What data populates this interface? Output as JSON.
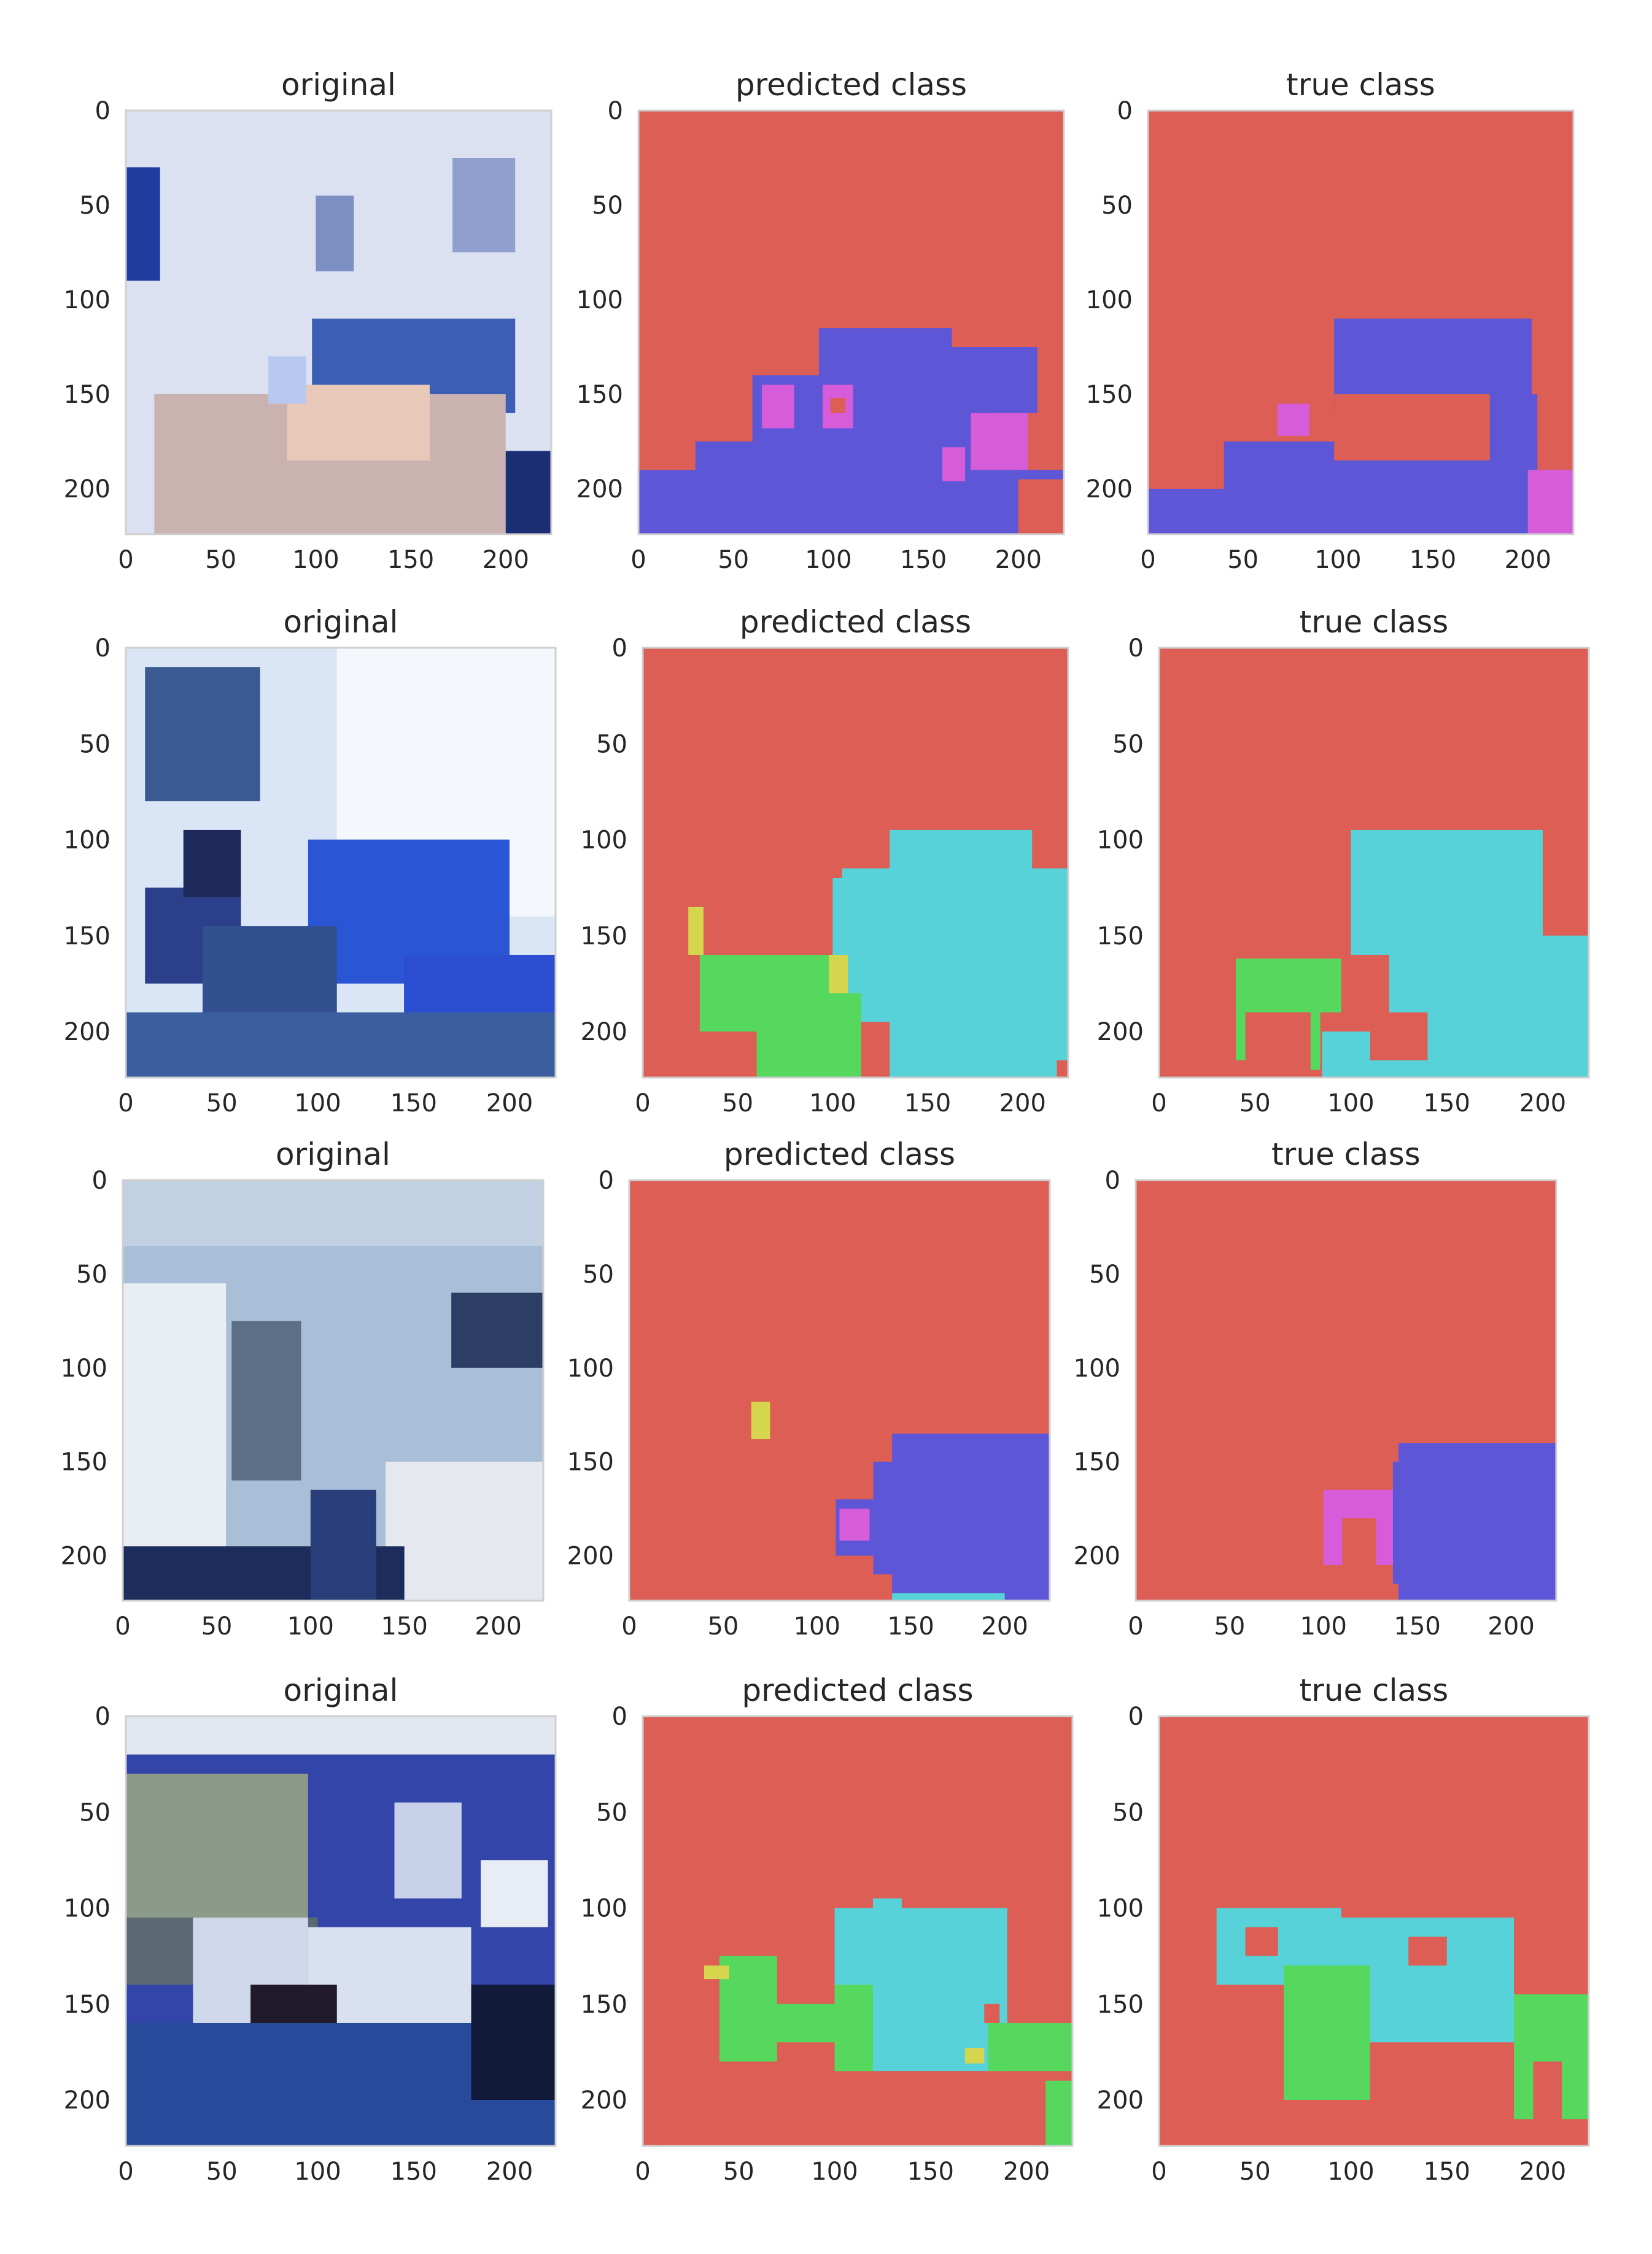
{
  "figure": {
    "row_count": 4,
    "panel_titles": [
      "original",
      "predicted class",
      "true class"
    ]
  },
  "colors": {
    "background": "#dc5e55",
    "class_blue": "#5d57d8",
    "class_magenta": "#d65cd9",
    "class_cyan": "#58d2d9",
    "class_green": "#56d85e",
    "class_yellow": "#d6d64e",
    "photo_wall_light": "#dbe3f3",
    "photo_wall_blue": "#3c53b5",
    "photo_floor_dark": "#1d2d66",
    "photo_sofa_blue": "#2f54d6"
  },
  "chart_data": [
    {
      "panel": "row1-original",
      "type": "heatmap",
      "title": "original",
      "xticks": [
        0,
        50,
        100,
        150,
        200
      ],
      "yticks": [
        0,
        50,
        100,
        150,
        200
      ],
      "xlim": [
        0,
        224
      ],
      "ylim": [
        224,
        0
      ],
      "grid": false
    },
    {
      "panel": "row1-predicted",
      "type": "heatmap",
      "title": "predicted class",
      "xticks": [
        0,
        50,
        100,
        150,
        200
      ],
      "yticks": [
        0,
        50,
        100,
        150,
        200
      ],
      "xlim": [
        0,
        224
      ],
      "ylim": [
        224,
        0
      ],
      "grid": false,
      "classes_present": [
        "background",
        "class_blue",
        "class_magenta"
      ]
    },
    {
      "panel": "row1-true",
      "type": "heatmap",
      "title": "true class",
      "xticks": [
        0,
        50,
        100,
        150,
        200
      ],
      "yticks": [
        0,
        50,
        100,
        150,
        200
      ],
      "xlim": [
        0,
        224
      ],
      "ylim": [
        224,
        0
      ],
      "grid": false,
      "classes_present": [
        "background",
        "class_blue",
        "class_magenta"
      ]
    },
    {
      "panel": "row2-original",
      "type": "heatmap",
      "title": "original",
      "xticks": [
        0,
        50,
        100,
        150,
        200
      ],
      "yticks": [
        0,
        50,
        100,
        150,
        200
      ],
      "xlim": [
        0,
        224
      ],
      "ylim": [
        224,
        0
      ],
      "grid": false
    },
    {
      "panel": "row2-predicted",
      "type": "heatmap",
      "title": "predicted class",
      "xticks": [
        0,
        50,
        100,
        150,
        200
      ],
      "yticks": [
        0,
        50,
        100,
        150,
        200
      ],
      "xlim": [
        0,
        224
      ],
      "ylim": [
        224,
        0
      ],
      "grid": false,
      "classes_present": [
        "background",
        "class_cyan",
        "class_green",
        "class_yellow"
      ]
    },
    {
      "panel": "row2-true",
      "type": "heatmap",
      "title": "true class",
      "xticks": [
        0,
        50,
        100,
        150,
        200
      ],
      "yticks": [
        0,
        50,
        100,
        150,
        200
      ],
      "xlim": [
        0,
        224
      ],
      "ylim": [
        224,
        0
      ],
      "grid": false,
      "classes_present": [
        "background",
        "class_cyan",
        "class_green"
      ]
    },
    {
      "panel": "row3-original",
      "type": "heatmap",
      "title": "original",
      "xticks": [
        0,
        50,
        100,
        150,
        200
      ],
      "yticks": [
        0,
        50,
        100,
        150,
        200
      ],
      "xlim": [
        0,
        224
      ],
      "ylim": [
        224,
        0
      ],
      "grid": false
    },
    {
      "panel": "row3-predicted",
      "type": "heatmap",
      "title": "predicted class",
      "xticks": [
        0,
        50,
        100,
        150,
        200
      ],
      "yticks": [
        0,
        50,
        100,
        150,
        200
      ],
      "xlim": [
        0,
        224
      ],
      "ylim": [
        224,
        0
      ],
      "grid": false,
      "classes_present": [
        "background",
        "class_blue",
        "class_magenta",
        "class_yellow"
      ]
    },
    {
      "panel": "row3-true",
      "type": "heatmap",
      "title": "true class",
      "xticks": [
        0,
        50,
        100,
        150,
        200
      ],
      "yticks": [
        0,
        50,
        100,
        150,
        200
      ],
      "xlim": [
        0,
        224
      ],
      "ylim": [
        224,
        0
      ],
      "grid": false,
      "classes_present": [
        "background",
        "class_blue",
        "class_magenta"
      ]
    },
    {
      "panel": "row4-original",
      "type": "heatmap",
      "title": "original",
      "xticks": [
        0,
        50,
        100,
        150,
        200
      ],
      "yticks": [
        0,
        50,
        100,
        150,
        200
      ],
      "xlim": [
        0,
        224
      ],
      "ylim": [
        224,
        0
      ],
      "grid": false
    },
    {
      "panel": "row4-predicted",
      "type": "heatmap",
      "title": "predicted class",
      "xticks": [
        0,
        50,
        100,
        150,
        200
      ],
      "yticks": [
        0,
        50,
        100,
        150,
        200
      ],
      "xlim": [
        0,
        224
      ],
      "ylim": [
        224,
        0
      ],
      "grid": false,
      "classes_present": [
        "background",
        "class_cyan",
        "class_green",
        "class_yellow"
      ]
    },
    {
      "panel": "row4-true",
      "type": "heatmap",
      "title": "true class",
      "xticks": [
        0,
        50,
        100,
        150,
        200
      ],
      "yticks": [
        0,
        50,
        100,
        150,
        200
      ],
      "xlim": [
        0,
        224
      ],
      "ylim": [
        224,
        0
      ],
      "grid": false,
      "classes_present": [
        "background",
        "class_cyan",
        "class_green"
      ]
    }
  ],
  "segments": {
    "row1-predicted": [
      {
        "cls": "class_blue",
        "x0": 0,
        "y0": 190,
        "x1": 224,
        "y1": 224
      },
      {
        "cls": "class_blue",
        "x0": 30,
        "y0": 175,
        "x1": 200,
        "y1": 200
      },
      {
        "cls": "class_blue",
        "x0": 60,
        "y0": 140,
        "x1": 185,
        "y1": 180
      },
      {
        "cls": "class_blue",
        "x0": 95,
        "y0": 115,
        "x1": 165,
        "y1": 145
      },
      {
        "cls": "class_blue",
        "x0": 160,
        "y0": 125,
        "x1": 210,
        "y1": 160
      },
      {
        "cls": "class_magenta",
        "x0": 65,
        "y0": 145,
        "x1": 82,
        "y1": 168
      },
      {
        "cls": "class_magenta",
        "x0": 97,
        "y0": 145,
        "x1": 113,
        "y1": 168
      },
      {
        "cls": "background",
        "x0": 101,
        "y0": 152,
        "x1": 109,
        "y1": 160
      },
      {
        "cls": "class_magenta",
        "x0": 175,
        "y0": 160,
        "x1": 205,
        "y1": 190
      },
      {
        "cls": "class_magenta",
        "x0": 160,
        "y0": 178,
        "x1": 172,
        "y1": 196
      },
      {
        "cls": "background",
        "x0": 0,
        "y0": 170,
        "x1": 28,
        "y1": 190
      },
      {
        "cls": "background",
        "x0": 200,
        "y0": 195,
        "x1": 224,
        "y1": 224
      }
    ],
    "row1-true": [
      {
        "cls": "class_blue",
        "x0": 98,
        "y0": 110,
        "x1": 202,
        "y1": 160
      },
      {
        "cls": "class_blue",
        "x0": 98,
        "y0": 150,
        "x1": 205,
        "y1": 224
      },
      {
        "cls": "class_blue",
        "x0": 40,
        "y0": 175,
        "x1": 205,
        "y1": 224
      },
      {
        "cls": "class_blue",
        "x0": 0,
        "y0": 200,
        "x1": 205,
        "y1": 224
      },
      {
        "cls": "background",
        "x0": 98,
        "y0": 150,
        "x1": 180,
        "y1": 185
      },
      {
        "cls": "background",
        "x0": 70,
        "y0": 155,
        "x1": 90,
        "y1": 170
      },
      {
        "cls": "class_magenta",
        "x0": 68,
        "y0": 155,
        "x1": 85,
        "y1": 172
      },
      {
        "cls": "class_magenta",
        "x0": 200,
        "y0": 190,
        "x1": 224,
        "y1": 224
      }
    ],
    "row2-predicted": [
      {
        "cls": "class_cyan",
        "x0": 100,
        "y0": 120,
        "x1": 224,
        "y1": 224
      },
      {
        "cls": "class_cyan",
        "x0": 130,
        "y0": 95,
        "x1": 205,
        "y1": 160
      },
      {
        "cls": "class_cyan",
        "x0": 105,
        "y0": 115,
        "x1": 224,
        "y1": 190
      },
      {
        "cls": "class_green",
        "x0": 30,
        "y0": 160,
        "x1": 100,
        "y1": 200
      },
      {
        "cls": "class_green",
        "x0": 60,
        "y0": 180,
        "x1": 115,
        "y1": 224
      },
      {
        "cls": "class_yellow",
        "x0": 24,
        "y0": 135,
        "x1": 32,
        "y1": 160
      },
      {
        "cls": "class_yellow",
        "x0": 98,
        "y0": 160,
        "x1": 108,
        "y1": 180
      },
      {
        "cls": "background",
        "x0": 115,
        "y0": 195,
        "x1": 130,
        "y1": 224
      },
      {
        "cls": "background",
        "x0": 218,
        "y0": 215,
        "x1": 224,
        "y1": 224
      }
    ],
    "row2-true": [
      {
        "cls": "class_cyan",
        "x0": 100,
        "y0": 95,
        "x1": 200,
        "y1": 160
      },
      {
        "cls": "class_cyan",
        "x0": 120,
        "y0": 150,
        "x1": 224,
        "y1": 224
      },
      {
        "cls": "class_cyan",
        "x0": 85,
        "y0": 200,
        "x1": 224,
        "y1": 224
      },
      {
        "cls": "class_green",
        "x0": 40,
        "y0": 162,
        "x1": 95,
        "y1": 190
      },
      {
        "cls": "class_green",
        "x0": 40,
        "y0": 185,
        "x1": 45,
        "y1": 215
      },
      {
        "cls": "class_green",
        "x0": 79,
        "y0": 185,
        "x1": 84,
        "y1": 220
      },
      {
        "cls": "background",
        "x0": 110,
        "y0": 190,
        "x1": 140,
        "y1": 215
      }
    ],
    "row3-predicted": [
      {
        "cls": "class_blue",
        "x0": 140,
        "y0": 135,
        "x1": 224,
        "y1": 224
      },
      {
        "cls": "class_blue",
        "x0": 130,
        "y0": 150,
        "x1": 224,
        "y1": 210
      },
      {
        "cls": "class_blue",
        "x0": 110,
        "y0": 170,
        "x1": 140,
        "y1": 200
      },
      {
        "cls": "class_magenta",
        "x0": 112,
        "y0": 175,
        "x1": 128,
        "y1": 192
      },
      {
        "cls": "class_yellow",
        "x0": 65,
        "y0": 118,
        "x1": 75,
        "y1": 138
      },
      {
        "cls": "class_cyan",
        "x0": 140,
        "y0": 220,
        "x1": 200,
        "y1": 224
      }
    ],
    "row3-true": [
      {
        "cls": "class_blue",
        "x0": 140,
        "y0": 140,
        "x1": 224,
        "y1": 224
      },
      {
        "cls": "class_blue",
        "x0": 137,
        "y0": 150,
        "x1": 224,
        "y1": 215
      },
      {
        "cls": "class_magenta",
        "x0": 100,
        "y0": 165,
        "x1": 137,
        "y1": 205
      },
      {
        "cls": "background",
        "x0": 110,
        "y0": 180,
        "x1": 128,
        "y1": 205
      }
    ],
    "row4-predicted": [
      {
        "cls": "class_cyan",
        "x0": 100,
        "y0": 100,
        "x1": 190,
        "y1": 185
      },
      {
        "cls": "class_cyan",
        "x0": 120,
        "y0": 95,
        "x1": 135,
        "y1": 110
      },
      {
        "cls": "class_green",
        "x0": 40,
        "y0": 125,
        "x1": 70,
        "y1": 180
      },
      {
        "cls": "class_green",
        "x0": 70,
        "y0": 150,
        "x1": 115,
        "y1": 170
      },
      {
        "cls": "class_green",
        "x0": 100,
        "y0": 140,
        "x1": 120,
        "y1": 185
      },
      {
        "cls": "class_green",
        "x0": 180,
        "y0": 160,
        "x1": 224,
        "y1": 185
      },
      {
        "cls": "class_green",
        "x0": 210,
        "y0": 190,
        "x1": 224,
        "y1": 224
      },
      {
        "cls": "class_yellow",
        "x0": 32,
        "y0": 130,
        "x1": 45,
        "y1": 137
      },
      {
        "cls": "class_yellow",
        "x0": 168,
        "y0": 173,
        "x1": 178,
        "y1": 181
      },
      {
        "cls": "background",
        "x0": 178,
        "y0": 150,
        "x1": 186,
        "y1": 160
      }
    ],
    "row4-true": [
      {
        "cls": "class_cyan",
        "x0": 30,
        "y0": 100,
        "x1": 95,
        "y1": 140
      },
      {
        "cls": "class_cyan",
        "x0": 95,
        "y0": 105,
        "x1": 185,
        "y1": 170
      },
      {
        "cls": "background",
        "x0": 45,
        "y0": 110,
        "x1": 62,
        "y1": 125
      },
      {
        "cls": "background",
        "x0": 130,
        "y0": 115,
        "x1": 150,
        "y1": 130
      },
      {
        "cls": "class_green",
        "x0": 65,
        "y0": 130,
        "x1": 110,
        "y1": 200
      },
      {
        "cls": "class_green",
        "x0": 185,
        "y0": 145,
        "x1": 224,
        "y1": 180
      },
      {
        "cls": "class_green",
        "x0": 185,
        "y0": 175,
        "x1": 195,
        "y1": 210
      },
      {
        "cls": "class_green",
        "x0": 210,
        "y0": 175,
        "x1": 224,
        "y1": 210
      }
    ]
  },
  "photo_regions": {
    "row1-original": [
      {
        "col": "#dbe1f0",
        "x0": 0,
        "y0": 0,
        "x1": 224,
        "y1": 224
      },
      {
        "col": "#1f3d9e",
        "x0": 0,
        "y0": 30,
        "x1": 18,
        "y1": 90
      },
      {
        "col": "#7d8fc2",
        "x0": 100,
        "y0": 45,
        "x1": 120,
        "y1": 85
      },
      {
        "col": "#8fa0cf",
        "x0": 172,
        "y0": 25,
        "x1": 205,
        "y1": 75
      },
      {
        "col": "#3c5fb5",
        "x0": 98,
        "y0": 110,
        "x1": 205,
        "y1": 160
      },
      {
        "col": "#c9b2b0",
        "x0": 15,
        "y0": 150,
        "x1": 200,
        "y1": 224
      },
      {
        "col": "#e8c8b8",
        "x0": 85,
        "y0": 145,
        "x1": 160,
        "y1": 185
      },
      {
        "col": "#1b2e73",
        "x0": 200,
        "y0": 180,
        "x1": 224,
        "y1": 224
      },
      {
        "col": "#b8c9f0",
        "x0": 75,
        "y0": 130,
        "x1": 95,
        "y1": 155
      }
    ],
    "row2-original": [
      {
        "col": "#dae6f5",
        "x0": 0,
        "y0": 0,
        "x1": 224,
        "y1": 224
      },
      {
        "col": "#f4f7fc",
        "x0": 110,
        "y0": 0,
        "x1": 224,
        "y1": 140
      },
      {
        "col": "#3b5a91",
        "x0": 10,
        "y0": 10,
        "x1": 70,
        "y1": 80
      },
      {
        "col": "#2b3f8a",
        "x0": 10,
        "y0": 125,
        "x1": 60,
        "y1": 175
      },
      {
        "col": "#1e2b5a",
        "x0": 30,
        "y0": 95,
        "x1": 60,
        "y1": 130
      },
      {
        "col": "#2a55d5",
        "x0": 95,
        "y0": 100,
        "x1": 200,
        "y1": 175
      },
      {
        "col": "#2c4ed0",
        "x0": 145,
        "y0": 160,
        "x1": 224,
        "y1": 224
      },
      {
        "col": "#33508e",
        "x0": 40,
        "y0": 145,
        "x1": 110,
        "y1": 200
      },
      {
        "col": "#3b5e9e",
        "x0": 0,
        "y0": 190,
        "x1": 224,
        "y1": 224
      }
    ],
    "row3-original": [
      {
        "col": "#a9bfd8",
        "x0": 0,
        "y0": 0,
        "x1": 224,
        "y1": 224
      },
      {
        "col": "#c2d1e2",
        "x0": 0,
        "y0": 0,
        "x1": 224,
        "y1": 35
      },
      {
        "col": "#e9eef3",
        "x0": 0,
        "y0": 55,
        "x1": 55,
        "y1": 224
      },
      {
        "col": "#5d6f86",
        "x0": 58,
        "y0": 75,
        "x1": 95,
        "y1": 160
      },
      {
        "col": "#2c3e66",
        "x0": 175,
        "y0": 60,
        "x1": 224,
        "y1": 100
      },
      {
        "col": "#e5e8ef",
        "x0": 140,
        "y0": 150,
        "x1": 224,
        "y1": 224
      },
      {
        "col": "#1c2d5c",
        "x0": 0,
        "y0": 195,
        "x1": 150,
        "y1": 224
      },
      {
        "col": "#2a3f7a",
        "x0": 100,
        "y0": 165,
        "x1": 135,
        "y1": 224
      }
    ],
    "row4-original": [
      {
        "col": "#3345a8",
        "x0": 0,
        "y0": 0,
        "x1": 224,
        "y1": 224
      },
      {
        "col": "#e3e7f2",
        "x0": 0,
        "y0": 0,
        "x1": 224,
        "y1": 20
      },
      {
        "col": "#8c9a8a",
        "x0": 0,
        "y0": 30,
        "x1": 95,
        "y1": 110
      },
      {
        "col": "#5b6a72",
        "x0": 0,
        "y0": 105,
        "x1": 100,
        "y1": 140
      },
      {
        "col": "#cfd8ea",
        "x0": 35,
        "y0": 105,
        "x1": 95,
        "y1": 160
      },
      {
        "col": "#d9e1f0",
        "x0": 95,
        "y0": 110,
        "x1": 180,
        "y1": 175
      },
      {
        "col": "#201a2a",
        "x0": 65,
        "y0": 140,
        "x1": 110,
        "y1": 195
      },
      {
        "col": "#274a9b",
        "x0": 0,
        "y0": 160,
        "x1": 224,
        "y1": 224
      },
      {
        "col": "#e8ecf5",
        "x0": 185,
        "y0": 75,
        "x1": 220,
        "y1": 110
      },
      {
        "col": "#121a3a",
        "x0": 180,
        "y0": 140,
        "x1": 224,
        "y1": 200
      },
      {
        "col": "#c7d2ea",
        "x0": 140,
        "y0": 45,
        "x1": 175,
        "y1": 95
      }
    ]
  }
}
